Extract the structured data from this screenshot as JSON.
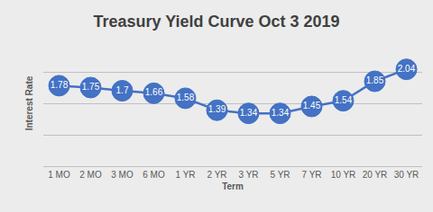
{
  "chart_data": {
    "type": "line",
    "title": "Treasury Yield Curve Oct 3 2019",
    "x_label": "Term",
    "y_label": "Interest Rate",
    "categories": [
      "1 MO",
      "2 MO",
      "3 MO",
      "6 MO",
      "1 YR",
      "2 YR",
      "3 YR",
      "5 YR",
      "7 YR",
      "10 YR",
      "20 YR",
      "30 YR"
    ],
    "values": [
      1.78,
      1.75,
      1.7,
      1.66,
      1.58,
      1.39,
      1.34,
      1.34,
      1.45,
      1.54,
      1.85,
      2.04
    ],
    "color": "#4472c4",
    "ylim": [
      0.5,
      2.5
    ],
    "yticks": [
      0.5,
      1,
      1.5,
      2,
      2.5
    ],
    "grid": true,
    "data_labels": true,
    "tick_labels": "x",
    "marker": "circle"
  }
}
